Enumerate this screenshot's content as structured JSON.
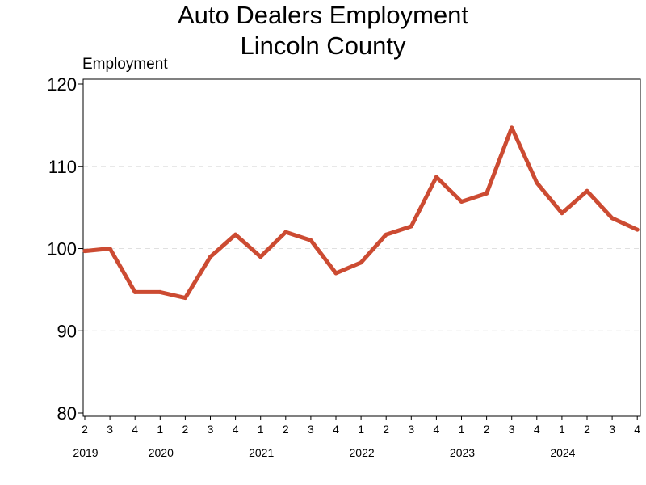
{
  "chart_data": {
    "type": "line",
    "title": "Auto Dealers Employment",
    "subtitle": "Lincoln County",
    "ylabel": "Employment",
    "xlabel": "",
    "ylim": [
      80,
      120
    ],
    "yticks": [
      80,
      90,
      100,
      110,
      120
    ],
    "grid": "horizontal dashed",
    "legend": "none",
    "colors": {
      "line": "#cc4b32",
      "grid": "#e0e0e0",
      "axis": "#000000"
    },
    "quarter_labels": [
      "2",
      "3",
      "4",
      "1",
      "2",
      "3",
      "4",
      "1",
      "2",
      "3",
      "4",
      "1",
      "2",
      "3",
      "4",
      "1",
      "2",
      "3",
      "4",
      "1",
      "2",
      "3",
      "4"
    ],
    "year_labels": [
      {
        "label": "2019",
        "quarter_index": 0
      },
      {
        "label": "2020",
        "quarter_index": 3
      },
      {
        "label": "2021",
        "quarter_index": 7
      },
      {
        "label": "2022",
        "quarter_index": 11
      },
      {
        "label": "2023",
        "quarter_index": 15
      },
      {
        "label": "2024",
        "quarter_index": 19
      }
    ],
    "series": [
      {
        "values": [
          99.7,
          100.0,
          94.7,
          94.7,
          94.0,
          99.0,
          101.7,
          99.0,
          102.0,
          101.0,
          97.0,
          98.3,
          101.7,
          102.7,
          108.7,
          105.7,
          106.7,
          114.7,
          108.0,
          104.3,
          107.0,
          103.7,
          102.3
        ]
      }
    ]
  }
}
